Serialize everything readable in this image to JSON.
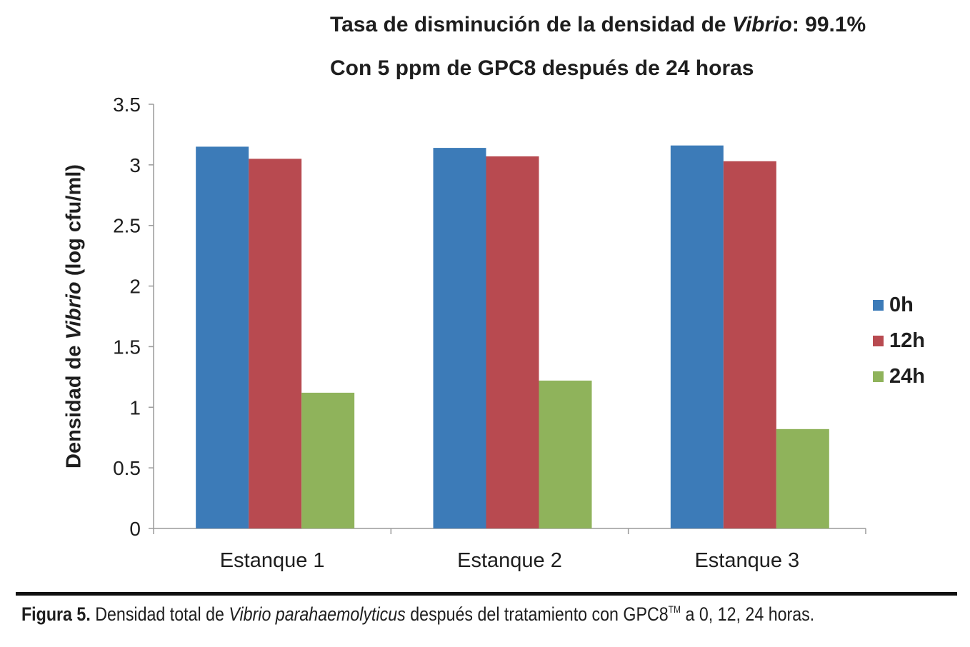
{
  "title": {
    "line1_prefix": "Tasa de disminución de la densidad de ",
    "line1_italic": "Vibrio",
    "line1_suffix": ": 99.1%",
    "line2": "Con 5 ppm de GPC8 después de 24 horas"
  },
  "ylabel": {
    "prefix": "Densidad de ",
    "italic": "Vibrio",
    "suffix": " (log  cfu/ml)"
  },
  "legend": [
    {
      "label": "0h",
      "color": "#3c7bb8"
    },
    {
      "label": "12h",
      "color": "#b84a50"
    },
    {
      "label": "24h",
      "color": "#8fb35b"
    }
  ],
  "caption": {
    "label": "Figura 5.",
    "text1": " Densidad total de ",
    "italic": "Vibrio parahaemolyticus",
    "text2": " después del tratamiento con GPC8",
    "tm": "TM",
    "text3": " a 0, 12, 24 horas."
  },
  "chart_data": {
    "type": "bar",
    "title": "Tasa de disminución de la densidad de Vibrio: 99.1% — Con 5 ppm de GPC8 después de 24 horas",
    "xlabel": "",
    "ylabel": "Densidad de Vibrio (log  cfu/ml)",
    "categories": [
      "Estanque 1",
      "Estanque 2",
      "Estanque 3"
    ],
    "series": [
      {
        "name": "0h",
        "color": "#3c7bb8",
        "values": [
          3.15,
          3.14,
          3.16
        ]
      },
      {
        "name": "12h",
        "color": "#b84a50",
        "values": [
          3.05,
          3.07,
          3.03
        ]
      },
      {
        "name": "24h",
        "color": "#8fb35b",
        "values": [
          1.12,
          1.22,
          0.82
        ]
      }
    ],
    "ylim": [
      0,
      3.5
    ],
    "yticks": [
      0,
      0.5,
      1,
      1.5,
      2,
      2.5,
      3,
      3.5
    ],
    "ytick_labels": [
      "0",
      "0.5",
      "1",
      "1.5",
      "2",
      "2.5",
      "3",
      "3.5"
    ],
    "grid": false,
    "legend_position": "right"
  }
}
